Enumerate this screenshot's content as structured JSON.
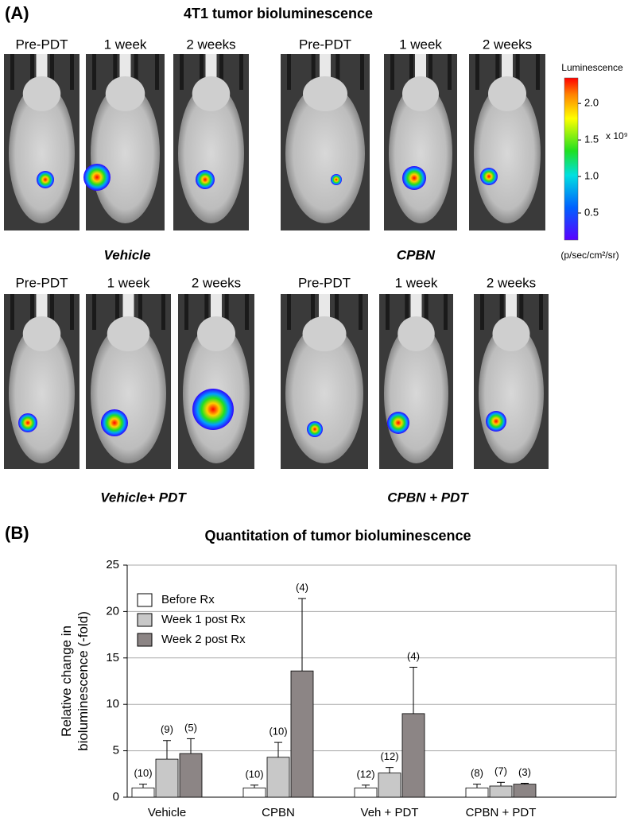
{
  "panel_a": {
    "label": "(A)",
    "title": "4T1 tumor bioluminescence",
    "rows": [
      {
        "groups": [
          {
            "name": "Vehicle",
            "timepoints": [
              "Pre-PDT",
              "1 week",
              "2 weeks"
            ]
          },
          {
            "name": "CPBN",
            "timepoints": [
              "Pre-PDT",
              "1 week",
              "2 weeks"
            ]
          }
        ]
      },
      {
        "groups": [
          {
            "name": "Vehicle+  PDT",
            "timepoints": [
              "Pre-PDT",
              "1 week",
              "2 weeks"
            ]
          },
          {
            "name": "CPBN + PDT",
            "timepoints": [
              "Pre-PDT",
              "1 week",
              "2 weeks"
            ]
          }
        ]
      }
    ],
    "colorbar": {
      "title": "Luminescence",
      "multiplier": "x 10⁹",
      "unit": "(p/sec/cm²/sr)",
      "clim": [
        0.13,
        2.35
      ],
      "ticks": [
        0.5,
        {
          "value": 1,
          "label": "1.0"
        },
        1.5,
        {
          "value": 2,
          "label": "2.0"
        }
      ]
    }
  },
  "chart_data": {
    "type": "bar",
    "panel_label": "(B)",
    "title": "Quantitation of tumor bioluminescence",
    "ylabel": [
      "Relative change in",
      "bioluminescence (-fold)"
    ],
    "categories": [
      "Vehicle",
      "CPBN",
      "Veh + PDT",
      "CPBN + PDT"
    ],
    "series": [
      {
        "name": "Before Rx",
        "color": "#ffffff",
        "values": [
          1,
          1,
          1,
          1
        ],
        "errors": [
          0.4,
          0.3,
          0.3,
          0.4
        ],
        "n_labels": [
          "(10)",
          "(10)",
          "(12)",
          "(8)"
        ]
      },
      {
        "name": "Week 1 post Rx",
        "color": "#c8c8c8",
        "values": [
          4.1,
          4.3,
          2.6,
          1.2
        ],
        "errors": [
          2.0,
          1.6,
          0.6,
          0.4
        ],
        "n_labels": [
          "(9)",
          "(10)",
          "(12)",
          "(7)"
        ]
      },
      {
        "name": "Week 2 post Rx",
        "color": "#8c8585",
        "values": [
          4.7,
          13.6,
          9.0,
          1.4
        ],
        "errors": [
          1.6,
          7.8,
          5.0,
          0.1
        ],
        "n_labels": [
          "(5)",
          "(4)",
          "(4)",
          "(3)"
        ]
      }
    ],
    "ylim": [
      0,
      25
    ],
    "yticks": [
      0,
      5,
      10,
      15,
      20,
      25
    ],
    "grid": true
  }
}
